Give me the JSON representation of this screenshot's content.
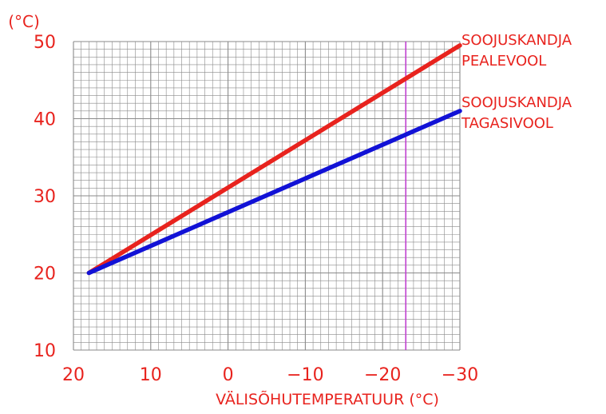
{
  "chart_data": {
    "type": "line",
    "ylabel": "(°C)",
    "xlabel": "VÄLISÕHUTEMPERATUUR (°C)",
    "xlim": [
      20,
      -30
    ],
    "ylim": [
      10,
      50
    ],
    "x_ticks": [
      20,
      10,
      0,
      -10,
      -20,
      -30
    ],
    "x_tick_labels": [
      "20",
      "10",
      "0",
      "−10",
      "−20",
      "−30"
    ],
    "y_ticks": [
      10,
      20,
      30,
      40,
      50
    ],
    "y_tick_labels": [
      "10",
      "20",
      "30",
      "40",
      "50"
    ],
    "grid": true,
    "marker_line_x": -23,
    "series": [
      {
        "name": "SOOJUSKANDJA PEALEVOOL",
        "label_lines": [
          "SOOJUSKANDJA",
          "PEALEVOOL"
        ],
        "color": "#e8231e",
        "points": [
          [
            18,
            20
          ],
          [
            -30,
            49.5
          ]
        ]
      },
      {
        "name": "SOOJUSKANDJA TAGASIVOOL",
        "label_lines": [
          "SOOJUSKANDJA",
          "TAGASIVOOL"
        ],
        "color": "#1212d6",
        "points": [
          [
            18,
            20
          ],
          [
            -30,
            41
          ]
        ]
      }
    ],
    "colors": {
      "grid": "#8a8a8a",
      "text": "#e8231e",
      "marker": "#c040d0"
    }
  }
}
